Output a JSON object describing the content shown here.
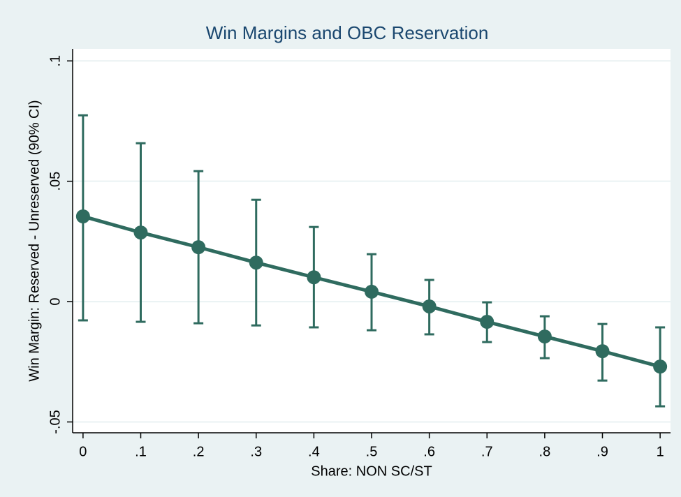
{
  "chart_data": {
    "type": "line",
    "title": "Win Margins and OBC Reservation",
    "x_label": "Share: NON SC/ST",
    "y_label": "Win Margin: Reserved - Unreserved (90% CI)",
    "x": [
      0,
      0.1,
      0.2,
      0.3,
      0.4,
      0.5,
      0.6,
      0.7,
      0.8,
      0.9,
      1
    ],
    "series": [
      {
        "color": "#2f6b5f",
        "values": [
          0.0354,
          0.0287,
          0.0226,
          0.0162,
          0.0101,
          0.0041,
          -0.002,
          -0.0084,
          -0.0145,
          -0.0206,
          -0.027
        ],
        "lower": [
          -0.0078,
          -0.0084,
          -0.009,
          -0.0099,
          -0.0107,
          -0.0119,
          -0.0136,
          -0.0168,
          -0.0235,
          -0.0328,
          -0.0435
        ],
        "upper": [
          0.0774,
          0.0658,
          0.0542,
          0.0423,
          0.031,
          0.0197,
          0.009,
          -0.0003,
          -0.0061,
          -0.0093,
          -0.0107
        ]
      }
    ],
    "xlim": [
      -0.018,
      1.018
    ],
    "ylim": [
      -0.0545,
      0.105
    ],
    "xticks": [
      0,
      {
        "value": 0.1,
        "label": ".1"
      },
      {
        "value": 0.2,
        "label": ".2"
      },
      {
        "value": 0.3,
        "label": ".3"
      },
      {
        "value": 0.4,
        "label": ".4"
      },
      {
        "value": 0.5,
        "label": ".5"
      },
      {
        "value": 0.6,
        "label": ".6"
      },
      {
        "value": 0.7,
        "label": ".7"
      },
      {
        "value": 0.8,
        "label": ".8"
      },
      {
        "value": 0.9,
        "label": ".9"
      },
      1
    ],
    "yticks": [
      {
        "value": -0.05,
        "label": "-.05"
      },
      0,
      {
        "value": 0.05,
        "label": ".05"
      },
      {
        "value": 0.1,
        "label": ".1"
      }
    ],
    "grid": true
  }
}
